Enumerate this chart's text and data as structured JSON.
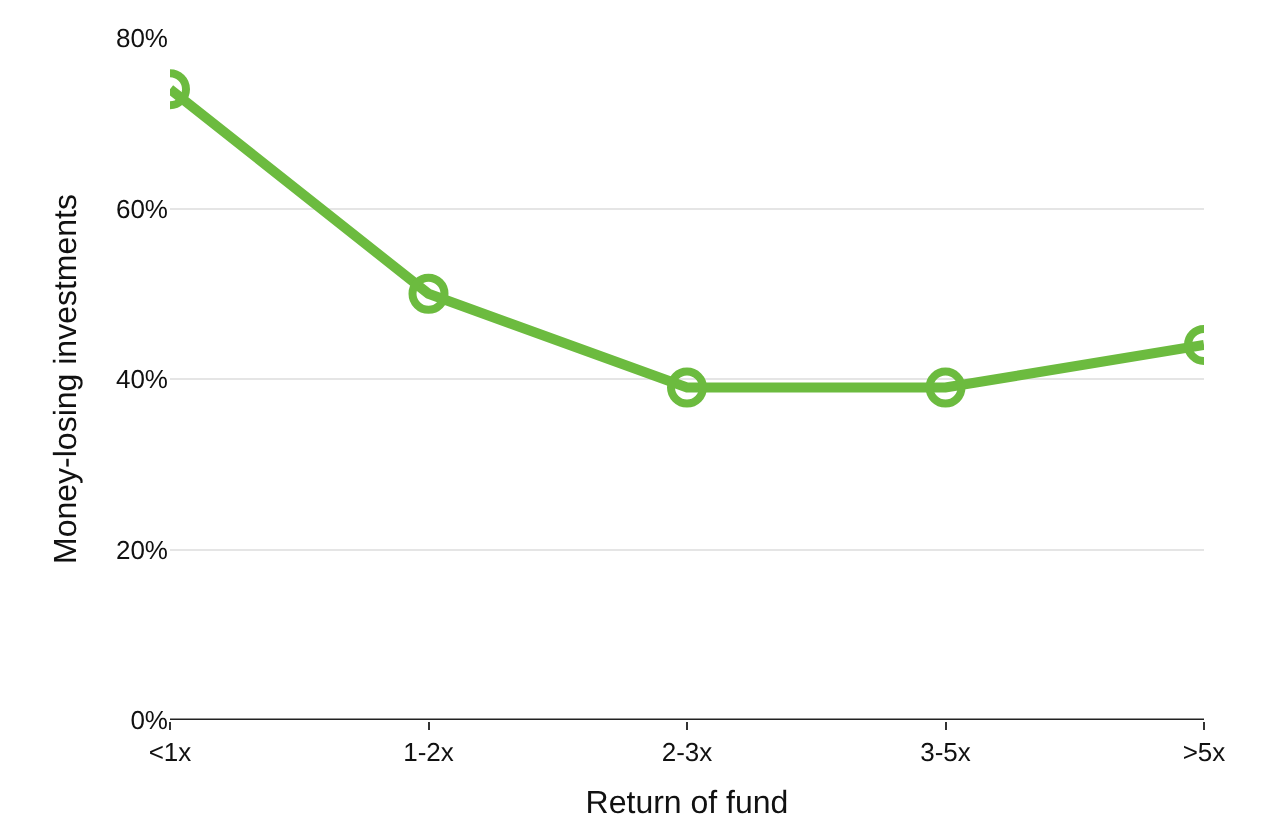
{
  "chart_data": {
    "type": "line",
    "xlabel": "Return of fund",
    "ylabel": "Money-losing investments",
    "categories": [
      "<1x",
      "1-2x",
      "2-3x",
      "3-5x",
      ">5x"
    ],
    "series": [
      {
        "color": "#6cbb3f",
        "values": [
          74,
          50,
          39,
          39,
          44
        ]
      }
    ],
    "ylim": [
      0,
      80
    ],
    "yticks": [
      {
        "value": 0,
        "label": "0%"
      },
      {
        "value": 20,
        "label": "20%"
      },
      {
        "value": 40,
        "label": "40%"
      },
      {
        "value": 60,
        "label": "60%"
      },
      {
        "value": 80,
        "label": "80%"
      }
    ],
    "grid": "y",
    "marker": "circle",
    "line_style": "solid",
    "legend": false
  }
}
